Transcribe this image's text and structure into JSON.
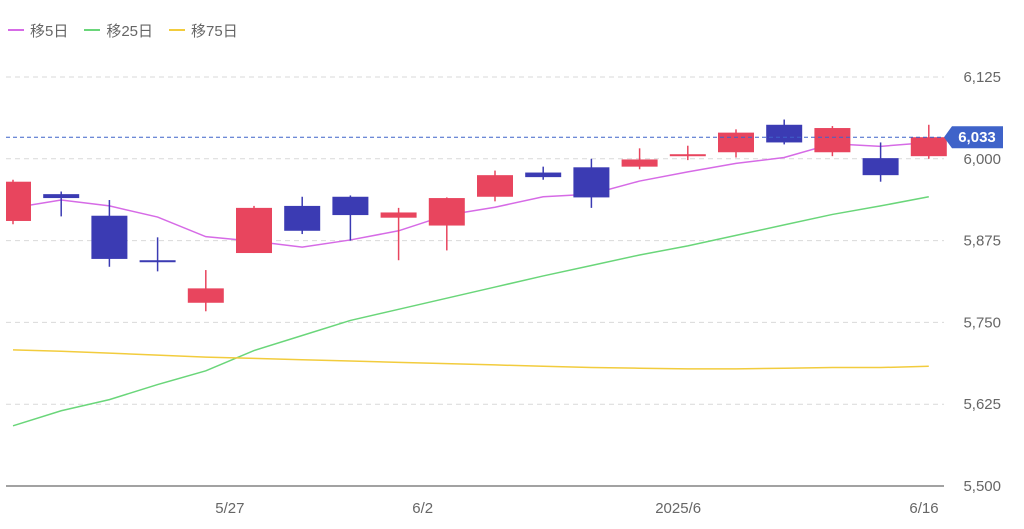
{
  "legend": {
    "items": [
      {
        "label": "移5日",
        "color": "#d66be6"
      },
      {
        "label": "移25日",
        "color": "#6ad67a"
      },
      {
        "label": "移75日",
        "color": "#f2cc3d"
      }
    ]
  },
  "current_price": {
    "label": "6,033",
    "value": 6033,
    "color": "#3f63c9"
  },
  "chart_data": {
    "type": "candlestick",
    "ylim": [
      5500,
      6160
    ],
    "y_ticks": [
      {
        "value": 5500,
        "label": "5,500"
      },
      {
        "value": 5625,
        "label": "5,625"
      },
      {
        "value": 5750,
        "label": "5,750"
      },
      {
        "value": 5875,
        "label": "5,875"
      },
      {
        "value": 6000,
        "label": "6,000"
      },
      {
        "value": 6125,
        "label": "6,125"
      }
    ],
    "x_ticks": [
      {
        "index": 4.5,
        "label": "5/27"
      },
      {
        "index": 8.5,
        "label": "6/2"
      },
      {
        "index": 13.8,
        "label": "2025/6"
      },
      {
        "index": 18.9,
        "label": "6/16"
      }
    ],
    "up_color": "#e8455e",
    "down_color": "#3b3bb3",
    "candles": [
      {
        "open": 5905,
        "close": 5965,
        "high": 5968,
        "low": 5900
      },
      {
        "open": 5946,
        "close": 5940,
        "high": 5950,
        "low": 5912
      },
      {
        "open": 5913,
        "close": 5847,
        "high": 5937,
        "low": 5835
      },
      {
        "open": 5845,
        "close": 5843,
        "high": 5880,
        "low": 5828
      },
      {
        "open": 5780,
        "close": 5802,
        "high": 5830,
        "low": 5767
      },
      {
        "open": 5856,
        "close": 5925,
        "high": 5928,
        "low": 5856
      },
      {
        "open": 5928,
        "close": 5890,
        "high": 5942,
        "low": 5885
      },
      {
        "open": 5942,
        "close": 5914,
        "high": 5944,
        "low": 5875
      },
      {
        "open": 5910,
        "close": 5918,
        "high": 5925,
        "low": 5845
      },
      {
        "open": 5898,
        "close": 5940,
        "high": 5941,
        "low": 5860
      },
      {
        "open": 5942,
        "close": 5975,
        "high": 5982,
        "low": 5935
      },
      {
        "open": 5979,
        "close": 5972,
        "high": 5988,
        "low": 5968
      },
      {
        "open": 5987,
        "close": 5941,
        "high": 6000,
        "low": 5925
      },
      {
        "open": 5988,
        "close": 5999,
        "high": 6016,
        "low": 5984
      },
      {
        "open": 6005,
        "close": 6007,
        "high": 6020,
        "low": 5998
      },
      {
        "open": 6010,
        "close": 6040,
        "high": 6045,
        "low": 6002
      },
      {
        "open": 6052,
        "close": 6025,
        "high": 6060,
        "low": 6022
      },
      {
        "open": 6010,
        "close": 6047,
        "high": 6050,
        "low": 6004
      },
      {
        "open": 6001,
        "close": 5975,
        "high": 6025,
        "low": 5965
      },
      {
        "open": 6004,
        "close": 6033,
        "high": 6052,
        "low": 6000
      }
    ],
    "series": [
      {
        "name": "移5日",
        "color": "#d66be6",
        "values": [
          5925,
          5937,
          5928,
          5911,
          5881,
          5874,
          5865,
          5876,
          5890,
          5914,
          5926,
          5942,
          5946,
          5966,
          5980,
          5993,
          6002,
          6023,
          6019,
          6025
        ]
      },
      {
        "name": "移25日",
        "color": "#6ad67a",
        "values": [
          5592,
          5615,
          5632,
          5655,
          5676,
          5707,
          5730,
          5753,
          5770,
          5787,
          5804,
          5821,
          5837,
          5853,
          5867,
          5883,
          5899,
          5915,
          5928,
          5942
        ]
      },
      {
        "name": "移75日",
        "color": "#f2cc3d",
        "values": [
          5708,
          5706,
          5703,
          5700,
          5697,
          5695,
          5693,
          5691,
          5689,
          5687,
          5685,
          5683,
          5681,
          5680,
          5679,
          5679,
          5680,
          5681,
          5681,
          5683
        ]
      }
    ]
  }
}
